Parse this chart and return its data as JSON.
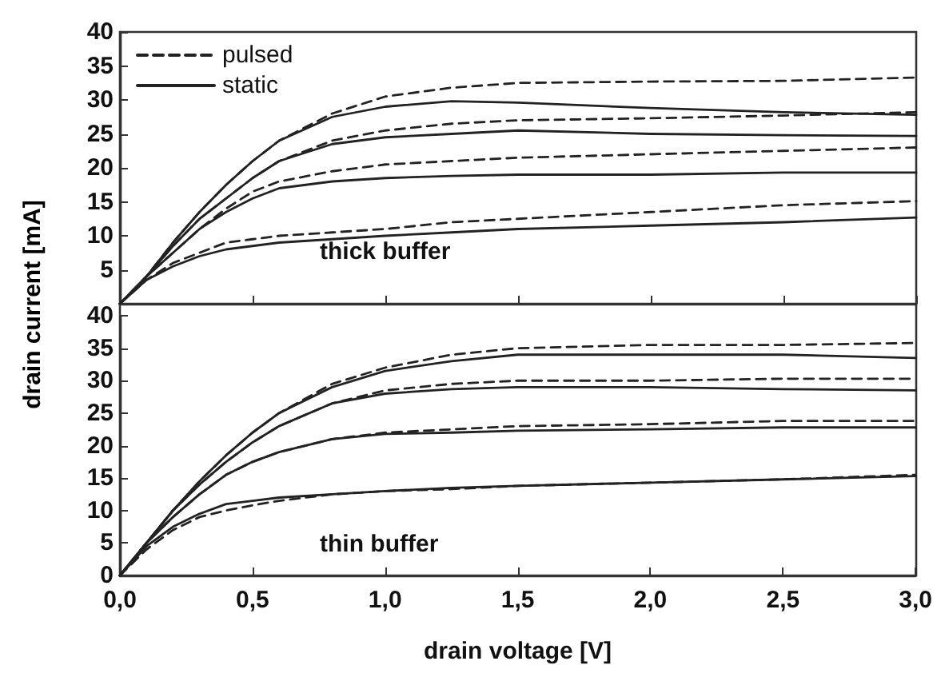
{
  "chart_data": [
    {
      "type": "line",
      "ylabel": "drain current [mA]",
      "annotations": [
        "thick buffer"
      ],
      "legend": "top left",
      "grid": false,
      "marker": "none",
      "tick_labels": "y",
      "x": [
        0,
        0.1,
        0.2,
        0.3,
        0.4,
        0.5,
        0.6,
        0.8,
        1.0,
        1.25,
        1.5,
        2.0,
        2.5,
        3.0
      ],
      "xlim": [
        0,
        3.0
      ],
      "xticks": [
        {
          "value": 0,
          "label": null
        },
        {
          "value": 0.5,
          "label": null
        },
        {
          "value": 1.0,
          "label": null
        },
        {
          "value": 1.5,
          "label": null
        },
        {
          "value": 2.0,
          "label": null
        },
        {
          "value": 2.5,
          "label": null
        },
        {
          "value": 3.0,
          "label": null
        }
      ],
      "ylim": [
        0,
        40
      ],
      "yticks": [
        {
          "value": 0,
          "label": null
        },
        5,
        10,
        15,
        20,
        25,
        30,
        35,
        40
      ],
      "series": [
        {
          "name": "pulsed",
          "color": "#222222",
          "line_style": "dashed",
          "values": [
            0,
            4,
            9,
            13.5,
            17.5,
            21,
            24,
            28,
            30.5,
            31.8,
            32.5,
            32.7,
            32.8,
            33.3
          ]
        },
        {
          "name": "static",
          "color": "#222222",
          "line_style": "solid",
          "values": [
            0,
            4,
            9,
            13.5,
            17.5,
            21,
            24,
            27.5,
            29,
            29.8,
            29.6,
            28.8,
            28.2,
            27.8
          ]
        },
        {
          "color": "#222222",
          "line_style": "dashed",
          "values": [
            0,
            4,
            8.5,
            12.5,
            15.5,
            18.5,
            21,
            24,
            25.5,
            26.5,
            27,
            27.3,
            27.7,
            28.2
          ]
        },
        {
          "color": "#222222",
          "line_style": "solid",
          "values": [
            0,
            4,
            8.5,
            12.5,
            15.5,
            18.5,
            21,
            23.5,
            24.5,
            25,
            25.5,
            25,
            24.8,
            24.7
          ]
        },
        {
          "color": "#222222",
          "line_style": "dashed",
          "values": [
            0,
            4,
            7.5,
            11,
            14,
            16.5,
            18,
            19.5,
            20.5,
            21,
            21.5,
            22,
            22.5,
            23
          ]
        },
        {
          "color": "#222222",
          "line_style": "solid",
          "values": [
            0,
            4,
            7.5,
            11,
            13.5,
            15.5,
            17,
            18,
            18.5,
            18.8,
            19,
            19,
            19.3,
            19.3
          ]
        },
        {
          "color": "#222222",
          "line_style": "dashed",
          "values": [
            0,
            3.5,
            6,
            7.5,
            9,
            9.5,
            10,
            10.5,
            11,
            12,
            12.5,
            13.5,
            14.5,
            15.1
          ]
        },
        {
          "color": "#222222",
          "line_style": "solid",
          "values": [
            0,
            3.5,
            5.5,
            7,
            8,
            8.5,
            9,
            9.5,
            10,
            10.5,
            11,
            11.5,
            12,
            12.7
          ]
        }
      ]
    },
    {
      "type": "line",
      "xlabel": "drain voltage [V]",
      "annotations": [
        "thin buffer"
      ],
      "legend": false,
      "grid": false,
      "marker": "none",
      "x": [
        0,
        0.1,
        0.2,
        0.3,
        0.4,
        0.5,
        0.6,
        0.8,
        1.0,
        1.25,
        1.5,
        2.0,
        2.5,
        3.0
      ],
      "xlim": [
        0,
        3.0
      ],
      "xticks": [
        {
          "value": 0,
          "label": "0,0"
        },
        {
          "value": 0.5,
          "label": "0,5"
        },
        {
          "value": 1.0,
          "label": "1,0"
        },
        {
          "value": 1.5,
          "label": "1,5"
        },
        {
          "value": 2.0,
          "label": "2,0"
        },
        {
          "value": 2.5,
          "label": "2,5"
        },
        {
          "value": 3.0,
          "label": "3,0"
        }
      ],
      "ylim": [
        0,
        40
      ],
      "yticks": [
        0,
        5,
        10,
        15,
        20,
        25,
        30,
        35,
        40
      ],
      "series": [
        {
          "color": "#222222",
          "line_style": "dashed",
          "values": [
            0,
            5,
            10,
            14.5,
            18.5,
            22,
            25,
            29.5,
            32,
            34,
            35,
            35.5,
            35.5,
            35.8
          ]
        },
        {
          "color": "#222222",
          "line_style": "solid",
          "values": [
            0,
            5,
            10,
            14.5,
            18.5,
            22,
            25,
            29,
            31.5,
            33,
            34,
            34,
            34,
            33.5
          ]
        },
        {
          "color": "#222222",
          "line_style": "dashed",
          "values": [
            0,
            5,
            10,
            14,
            17.5,
            20.5,
            23,
            26.5,
            28.5,
            29.5,
            30,
            30,
            30.3,
            30.3
          ]
        },
        {
          "color": "#222222",
          "line_style": "solid",
          "values": [
            0,
            5,
            10,
            14,
            17.5,
            20.5,
            23,
            26.5,
            28,
            28.7,
            29,
            29,
            28.7,
            28.5
          ]
        },
        {
          "color": "#222222",
          "line_style": "dashed",
          "values": [
            0,
            5,
            9,
            12.5,
            15.5,
            17.5,
            19,
            21,
            22,
            22.5,
            23,
            23.3,
            23.8,
            23.8
          ]
        },
        {
          "color": "#222222",
          "line_style": "solid",
          "values": [
            0,
            5,
            9,
            12.5,
            15.5,
            17.5,
            19,
            21,
            21.8,
            22,
            22.3,
            22.5,
            22.8,
            22.8
          ]
        },
        {
          "color": "#222222",
          "line_style": "dashed",
          "values": [
            0,
            4,
            7,
            9,
            10,
            10.8,
            11.5,
            12.5,
            13,
            13.3,
            13.8,
            14.3,
            14.8,
            15.5
          ]
        },
        {
          "color": "#222222",
          "line_style": "solid",
          "values": [
            0,
            4.5,
            7.5,
            9.5,
            11,
            11.5,
            12,
            12.5,
            13,
            13.5,
            13.8,
            14.3,
            14.8,
            15.3
          ]
        }
      ]
    }
  ]
}
